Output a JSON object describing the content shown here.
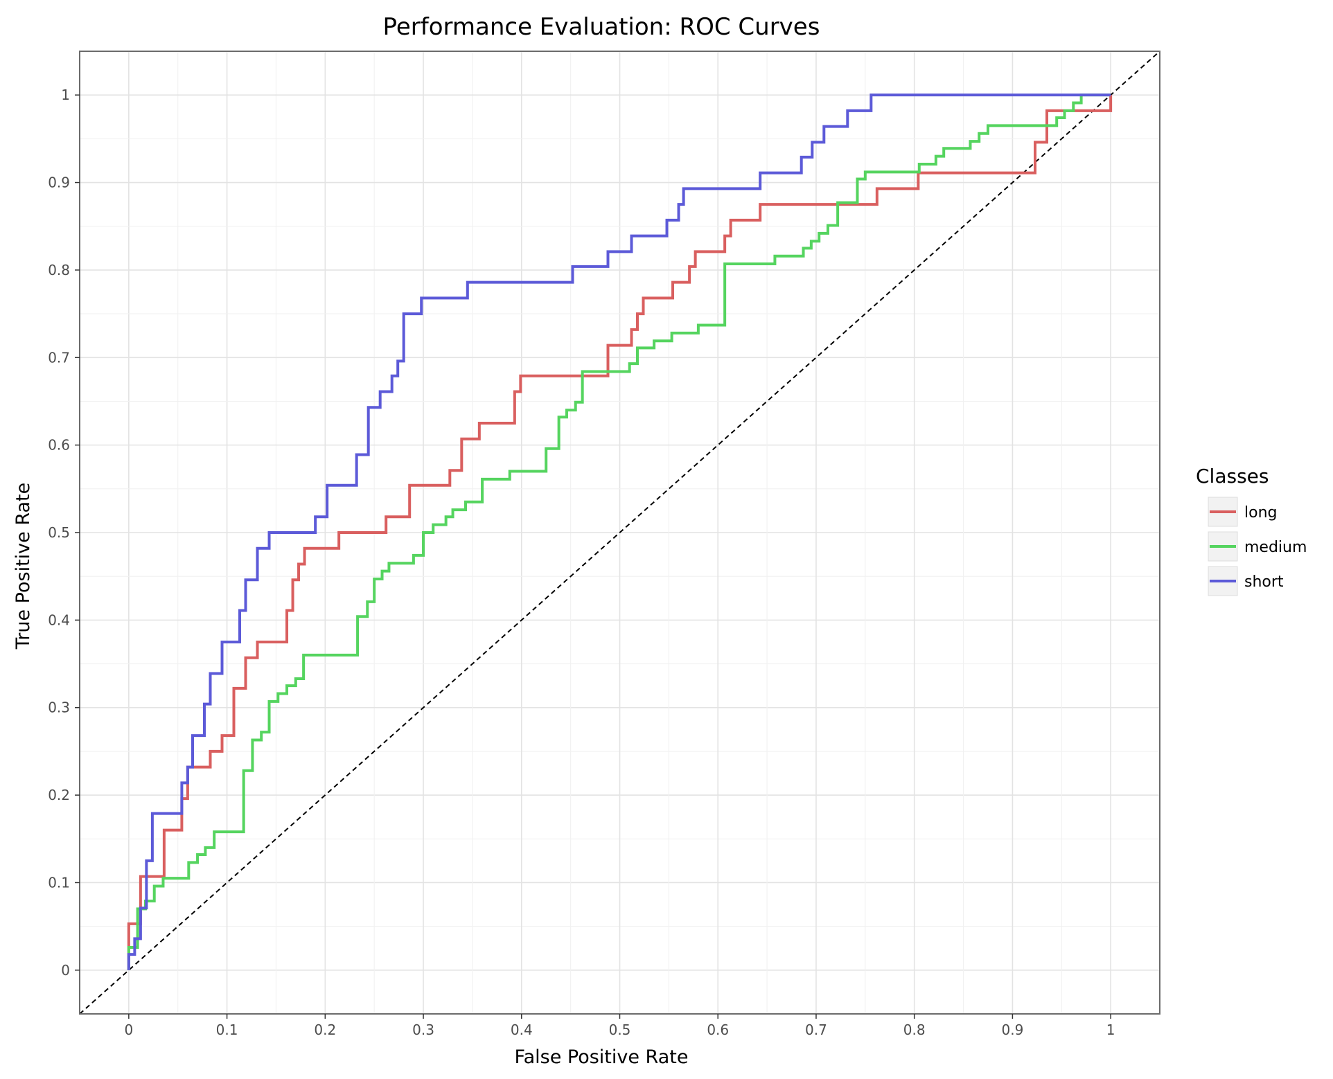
{
  "chart_data": {
    "type": "line",
    "title": "Performance Evaluation: ROC Curves",
    "xlabel": "False Positive Rate",
    "ylabel": "True Positive Rate",
    "xlim": [
      -0.05,
      1.05
    ],
    "ylim": [
      -0.05,
      1.05
    ],
    "x_ticks": [
      "0",
      "0.1",
      "0.2",
      "0.3",
      "0.4",
      "0.5",
      "0.6",
      "0.7",
      "0.8",
      "0.9",
      "1"
    ],
    "y_ticks": [
      "0",
      "0.1",
      "0.2",
      "0.3",
      "0.4",
      "0.5",
      "0.6",
      "0.7",
      "0.8",
      "0.9",
      "1"
    ],
    "grid": true,
    "legend": {
      "title": "Classes",
      "position": "right"
    },
    "diagonal_reference": {
      "x": [
        0,
        1
      ],
      "y": [
        0,
        1
      ],
      "style": "dashed",
      "color": "#000000"
    },
    "series": [
      {
        "name": "long",
        "color": "#d95f5f",
        "points": [
          [
            0.0,
            0.0
          ],
          [
            0.0,
            0.053
          ],
          [
            0.012,
            0.053
          ],
          [
            0.012,
            0.107
          ],
          [
            0.036,
            0.107
          ],
          [
            0.036,
            0.16
          ],
          [
            0.054,
            0.16
          ],
          [
            0.054,
            0.196
          ],
          [
            0.06,
            0.196
          ],
          [
            0.06,
            0.232
          ],
          [
            0.083,
            0.232
          ],
          [
            0.083,
            0.25
          ],
          [
            0.095,
            0.25
          ],
          [
            0.095,
            0.268
          ],
          [
            0.107,
            0.268
          ],
          [
            0.107,
            0.322
          ],
          [
            0.119,
            0.322
          ],
          [
            0.119,
            0.357
          ],
          [
            0.131,
            0.357
          ],
          [
            0.131,
            0.375
          ],
          [
            0.161,
            0.375
          ],
          [
            0.161,
            0.411
          ],
          [
            0.167,
            0.411
          ],
          [
            0.167,
            0.446
          ],
          [
            0.173,
            0.446
          ],
          [
            0.173,
            0.464
          ],
          [
            0.179,
            0.464
          ],
          [
            0.179,
            0.482
          ],
          [
            0.214,
            0.482
          ],
          [
            0.214,
            0.5
          ],
          [
            0.262,
            0.5
          ],
          [
            0.262,
            0.518
          ],
          [
            0.286,
            0.518
          ],
          [
            0.286,
            0.554
          ],
          [
            0.327,
            0.554
          ],
          [
            0.327,
            0.571
          ],
          [
            0.339,
            0.571
          ],
          [
            0.339,
            0.607
          ],
          [
            0.357,
            0.607
          ],
          [
            0.357,
            0.625
          ],
          [
            0.393,
            0.625
          ],
          [
            0.393,
            0.661
          ],
          [
            0.399,
            0.661
          ],
          [
            0.399,
            0.679
          ],
          [
            0.488,
            0.679
          ],
          [
            0.488,
            0.714
          ],
          [
            0.512,
            0.714
          ],
          [
            0.512,
            0.732
          ],
          [
            0.518,
            0.732
          ],
          [
            0.518,
            0.75
          ],
          [
            0.524,
            0.75
          ],
          [
            0.524,
            0.768
          ],
          [
            0.554,
            0.768
          ],
          [
            0.554,
            0.786
          ],
          [
            0.571,
            0.786
          ],
          [
            0.571,
            0.804
          ],
          [
            0.577,
            0.804
          ],
          [
            0.577,
            0.821
          ],
          [
            0.607,
            0.821
          ],
          [
            0.607,
            0.839
          ],
          [
            0.613,
            0.839
          ],
          [
            0.613,
            0.857
          ],
          [
            0.643,
            0.857
          ],
          [
            0.643,
            0.875
          ],
          [
            0.762,
            0.875
          ],
          [
            0.762,
            0.893
          ],
          [
            0.804,
            0.893
          ],
          [
            0.804,
            0.911
          ],
          [
            0.923,
            0.911
          ],
          [
            0.923,
            0.946
          ],
          [
            0.935,
            0.946
          ],
          [
            0.935,
            0.982
          ],
          [
            1.0,
            0.982
          ],
          [
            1.0,
            1.0
          ]
        ]
      },
      {
        "name": "medium",
        "color": "#55d45f",
        "points": [
          [
            0.0,
            0.0
          ],
          [
            0.0,
            0.026
          ],
          [
            0.009,
            0.026
          ],
          [
            0.009,
            0.07
          ],
          [
            0.017,
            0.07
          ],
          [
            0.017,
            0.079
          ],
          [
            0.026,
            0.079
          ],
          [
            0.026,
            0.096
          ],
          [
            0.035,
            0.096
          ],
          [
            0.035,
            0.105
          ],
          [
            0.061,
            0.105
          ],
          [
            0.061,
            0.123
          ],
          [
            0.07,
            0.123
          ],
          [
            0.07,
            0.132
          ],
          [
            0.078,
            0.132
          ],
          [
            0.078,
            0.14
          ],
          [
            0.087,
            0.14
          ],
          [
            0.087,
            0.158
          ],
          [
            0.117,
            0.158
          ],
          [
            0.117,
            0.228
          ],
          [
            0.126,
            0.228
          ],
          [
            0.126,
            0.263
          ],
          [
            0.135,
            0.263
          ],
          [
            0.135,
            0.272
          ],
          [
            0.143,
            0.272
          ],
          [
            0.143,
            0.307
          ],
          [
            0.152,
            0.307
          ],
          [
            0.152,
            0.316
          ],
          [
            0.161,
            0.316
          ],
          [
            0.161,
            0.325
          ],
          [
            0.17,
            0.325
          ],
          [
            0.17,
            0.333
          ],
          [
            0.178,
            0.333
          ],
          [
            0.178,
            0.36
          ],
          [
            0.233,
            0.36
          ],
          [
            0.233,
            0.404
          ],
          [
            0.243,
            0.404
          ],
          [
            0.243,
            0.421
          ],
          [
            0.25,
            0.421
          ],
          [
            0.25,
            0.447
          ],
          [
            0.258,
            0.447
          ],
          [
            0.258,
            0.456
          ],
          [
            0.265,
            0.456
          ],
          [
            0.265,
            0.465
          ],
          [
            0.29,
            0.465
          ],
          [
            0.29,
            0.474
          ],
          [
            0.3,
            0.474
          ],
          [
            0.3,
            0.5
          ],
          [
            0.31,
            0.5
          ],
          [
            0.31,
            0.509
          ],
          [
            0.323,
            0.509
          ],
          [
            0.323,
            0.518
          ],
          [
            0.33,
            0.518
          ],
          [
            0.33,
            0.526
          ],
          [
            0.343,
            0.526
          ],
          [
            0.343,
            0.535
          ],
          [
            0.36,
            0.535
          ],
          [
            0.36,
            0.561
          ],
          [
            0.388,
            0.561
          ],
          [
            0.388,
            0.57
          ],
          [
            0.425,
            0.57
          ],
          [
            0.425,
            0.596
          ],
          [
            0.438,
            0.596
          ],
          [
            0.438,
            0.632
          ],
          [
            0.446,
            0.632
          ],
          [
            0.446,
            0.64
          ],
          [
            0.455,
            0.64
          ],
          [
            0.455,
            0.649
          ],
          [
            0.462,
            0.649
          ],
          [
            0.462,
            0.684
          ],
          [
            0.51,
            0.684
          ],
          [
            0.51,
            0.693
          ],
          [
            0.518,
            0.693
          ],
          [
            0.518,
            0.711
          ],
          [
            0.535,
            0.711
          ],
          [
            0.535,
            0.719
          ],
          [
            0.553,
            0.719
          ],
          [
            0.553,
            0.728
          ],
          [
            0.58,
            0.728
          ],
          [
            0.58,
            0.737
          ],
          [
            0.607,
            0.737
          ],
          [
            0.607,
            0.807
          ],
          [
            0.658,
            0.807
          ],
          [
            0.658,
            0.816
          ],
          [
            0.687,
            0.816
          ],
          [
            0.687,
            0.825
          ],
          [
            0.695,
            0.825
          ],
          [
            0.695,
            0.833
          ],
          [
            0.703,
            0.833
          ],
          [
            0.703,
            0.842
          ],
          [
            0.712,
            0.842
          ],
          [
            0.712,
            0.851
          ],
          [
            0.722,
            0.851
          ],
          [
            0.722,
            0.877
          ],
          [
            0.742,
            0.877
          ],
          [
            0.742,
            0.904
          ],
          [
            0.75,
            0.904
          ],
          [
            0.75,
            0.912
          ],
          [
            0.805,
            0.912
          ],
          [
            0.805,
            0.921
          ],
          [
            0.822,
            0.921
          ],
          [
            0.822,
            0.93
          ],
          [
            0.83,
            0.93
          ],
          [
            0.83,
            0.939
          ],
          [
            0.857,
            0.939
          ],
          [
            0.857,
            0.947
          ],
          [
            0.866,
            0.947
          ],
          [
            0.866,
            0.956
          ],
          [
            0.875,
            0.956
          ],
          [
            0.875,
            0.965
          ],
          [
            0.945,
            0.965
          ],
          [
            0.945,
            0.974
          ],
          [
            0.953,
            0.974
          ],
          [
            0.953,
            0.982
          ],
          [
            0.962,
            0.982
          ],
          [
            0.962,
            0.991
          ],
          [
            0.97,
            0.991
          ],
          [
            0.97,
            1.0
          ],
          [
            1.0,
            1.0
          ]
        ]
      },
      {
        "name": "short",
        "color": "#5c5ad8",
        "points": [
          [
            0.0,
            0.0
          ],
          [
            0.0,
            0.018
          ],
          [
            0.006,
            0.018
          ],
          [
            0.006,
            0.036
          ],
          [
            0.012,
            0.036
          ],
          [
            0.012,
            0.071
          ],
          [
            0.018,
            0.071
          ],
          [
            0.018,
            0.125
          ],
          [
            0.024,
            0.125
          ],
          [
            0.024,
            0.179
          ],
          [
            0.054,
            0.179
          ],
          [
            0.054,
            0.214
          ],
          [
            0.06,
            0.214
          ],
          [
            0.06,
            0.232
          ],
          [
            0.065,
            0.232
          ],
          [
            0.065,
            0.268
          ],
          [
            0.077,
            0.268
          ],
          [
            0.077,
            0.304
          ],
          [
            0.083,
            0.304
          ],
          [
            0.083,
            0.339
          ],
          [
            0.095,
            0.339
          ],
          [
            0.095,
            0.375
          ],
          [
            0.113,
            0.375
          ],
          [
            0.113,
            0.411
          ],
          [
            0.119,
            0.411
          ],
          [
            0.119,
            0.446
          ],
          [
            0.131,
            0.446
          ],
          [
            0.131,
            0.482
          ],
          [
            0.143,
            0.482
          ],
          [
            0.143,
            0.5
          ],
          [
            0.19,
            0.5
          ],
          [
            0.19,
            0.518
          ],
          [
            0.202,
            0.518
          ],
          [
            0.202,
            0.554
          ],
          [
            0.232,
            0.554
          ],
          [
            0.232,
            0.589
          ],
          [
            0.244,
            0.589
          ],
          [
            0.244,
            0.643
          ],
          [
            0.256,
            0.643
          ],
          [
            0.256,
            0.661
          ],
          [
            0.268,
            0.661
          ],
          [
            0.268,
            0.679
          ],
          [
            0.274,
            0.679
          ],
          [
            0.274,
            0.696
          ],
          [
            0.28,
            0.696
          ],
          [
            0.28,
            0.75
          ],
          [
            0.298,
            0.75
          ],
          [
            0.298,
            0.768
          ],
          [
            0.345,
            0.768
          ],
          [
            0.345,
            0.786
          ],
          [
            0.452,
            0.786
          ],
          [
            0.452,
            0.804
          ],
          [
            0.488,
            0.804
          ],
          [
            0.488,
            0.821
          ],
          [
            0.512,
            0.821
          ],
          [
            0.512,
            0.839
          ],
          [
            0.548,
            0.839
          ],
          [
            0.548,
            0.857
          ],
          [
            0.56,
            0.857
          ],
          [
            0.56,
            0.875
          ],
          [
            0.565,
            0.875
          ],
          [
            0.565,
            0.893
          ],
          [
            0.643,
            0.893
          ],
          [
            0.643,
            0.911
          ],
          [
            0.685,
            0.911
          ],
          [
            0.685,
            0.929
          ],
          [
            0.696,
            0.929
          ],
          [
            0.696,
            0.946
          ],
          [
            0.708,
            0.946
          ],
          [
            0.708,
            0.964
          ],
          [
            0.732,
            0.964
          ],
          [
            0.732,
            0.982
          ],
          [
            0.756,
            0.982
          ],
          [
            0.756,
            1.0
          ],
          [
            1.0,
            1.0
          ]
        ]
      }
    ]
  }
}
